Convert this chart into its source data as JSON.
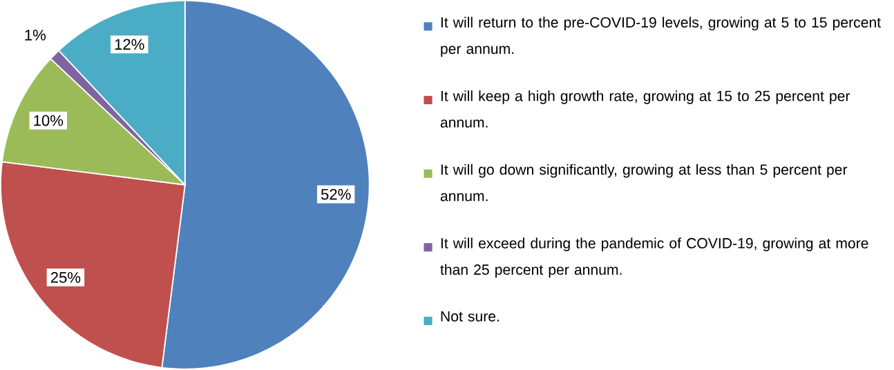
{
  "chart_data": {
    "type": "pie",
    "categories": [
      "It will return to the pre-COVID-19 levels, growing at 5 to 15 percent per annum.",
      "It will keep a high growth rate, growing at 15 to 25 percent per annum.",
      "It will go down significantly, growing at less than 5 percent per annum.",
      "It will exceed during the pandemic of COVID-19, growing at more than 25 percent per annum.",
      "Not sure."
    ],
    "values": [
      52,
      25,
      10,
      1,
      12
    ],
    "value_labels": [
      "52%",
      "25%",
      "10%",
      "1%",
      "12%"
    ],
    "colors": [
      "#4f81bd",
      "#c0504d",
      "#9bbb59",
      "#8064a2",
      "#4bacc6"
    ],
    "legend": "right"
  }
}
